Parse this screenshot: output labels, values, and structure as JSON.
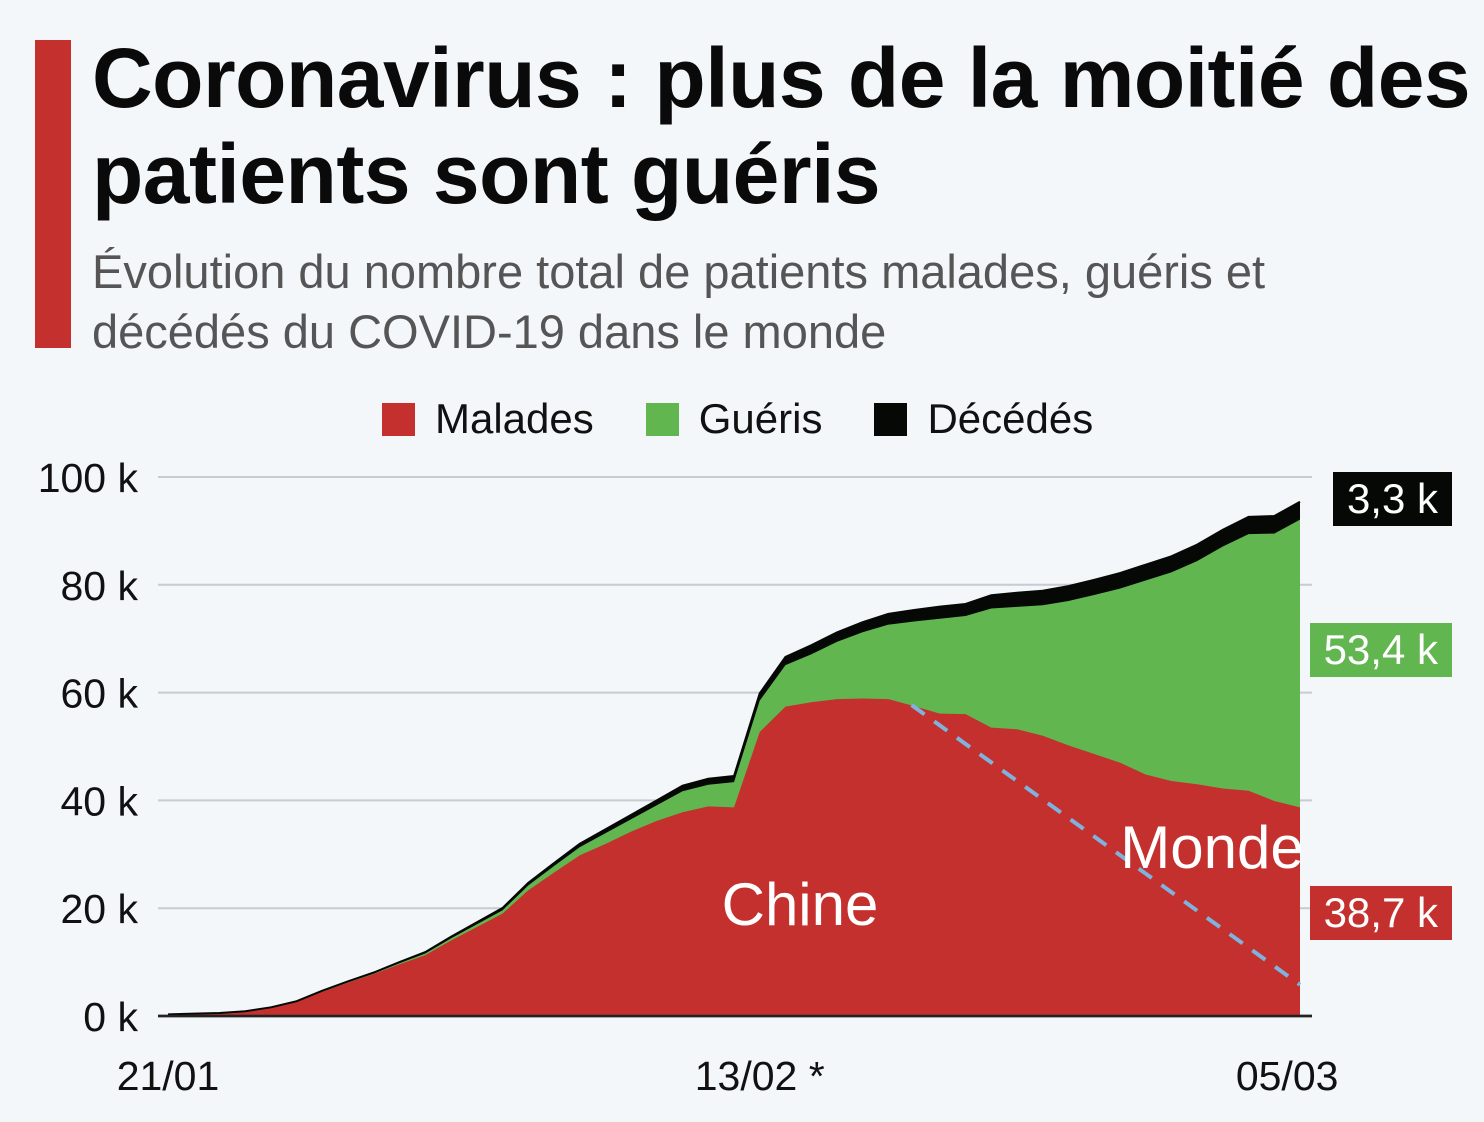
{
  "header": {
    "title": "Coronavirus : plus de la moitié des patients sont guéris",
    "subtitle": "Évolution du nombre total de patients malades, guéris et décédés du COVID-19 dans le monde"
  },
  "colors": {
    "malades": "#c4302e",
    "gueris": "#62b64f",
    "decedes": "#050805",
    "accent": "#c4302e",
    "dashed": "#7fb2dc"
  },
  "chart_data": {
    "type": "area",
    "stacked": true,
    "title": "Coronavirus : plus de la moitié des patients sont guéris",
    "xlabel": "",
    "ylabel": "",
    "x_days_from_start": [
      0,
      1,
      2,
      3,
      4,
      5,
      6,
      7,
      8,
      9,
      10,
      11,
      12,
      13,
      14,
      15,
      16,
      17,
      18,
      19,
      20,
      21,
      22,
      23,
      24,
      25,
      26,
      27,
      28,
      29,
      30,
      31,
      32,
      33,
      34,
      35,
      36,
      37,
      38,
      39,
      40,
      41,
      42,
      43,
      44
    ],
    "x_ticks": [
      {
        "day": 0,
        "label": "21/01"
      },
      {
        "day": 23,
        "label": "13/02 *"
      },
      {
        "day": 43.5,
        "label": "05/03"
      }
    ],
    "y_ticks": [
      {
        "value": 0,
        "label": "0 k"
      },
      {
        "value": 20,
        "label": "20 k"
      },
      {
        "value": 40,
        "label": "40 k"
      },
      {
        "value": 60,
        "label": "60 k"
      },
      {
        "value": 80,
        "label": "80 k"
      },
      {
        "value": 100,
        "label": "100 k"
      }
    ],
    "ylim": [
      0,
      100
    ],
    "grid": true,
    "legend": {
      "placement": "top-center",
      "entries": [
        "Malades",
        "Guéris",
        "Décédés"
      ]
    },
    "series": [
      {
        "name": "Malades",
        "unit": "k",
        "values": [
          0.3,
          0.4,
          0.5,
          0.8,
          1.5,
          2.6,
          4.5,
          6.2,
          7.8,
          9.6,
          11.3,
          14.0,
          16.5,
          19.0,
          23.3,
          26.6,
          29.8,
          31.9,
          34.2,
          36.2,
          37.8,
          38.9,
          38.7,
          52.7,
          57.4,
          58.2,
          58.8,
          58.9,
          58.8,
          57.5,
          56.1,
          56.0,
          53.5,
          53.2,
          52.0,
          50.2,
          48.6,
          47.0,
          44.8,
          43.6,
          43.0,
          42.2,
          41.8,
          39.9,
          38.7
        ]
      },
      {
        "name": "Guéris",
        "unit": "k",
        "values": [
          0,
          0.03,
          0.03,
          0.04,
          0.05,
          0.06,
          0.1,
          0.1,
          0.1,
          0.2,
          0.3,
          0.4,
          0.5,
          0.6,
          0.9,
          1.2,
          1.5,
          2.0,
          2.3,
          2.9,
          3.9,
          4.0,
          4.7,
          5.8,
          7.7,
          8.9,
          10.6,
          12.3,
          13.8,
          15.7,
          17.6,
          18.2,
          22.1,
          22.7,
          24.2,
          26.8,
          29.5,
          32.3,
          36.0,
          38.7,
          41.4,
          44.9,
          47.6,
          49.6,
          53.4
        ]
      },
      {
        "name": "Décédés",
        "unit": "k",
        "values": [
          0.01,
          0.02,
          0.03,
          0.04,
          0.06,
          0.08,
          0.1,
          0.13,
          0.17,
          0.21,
          0.26,
          0.3,
          0.36,
          0.43,
          0.49,
          0.56,
          0.64,
          0.72,
          0.81,
          0.91,
          1.02,
          1.11,
          1.12,
          1.37,
          1.52,
          1.67,
          1.77,
          1.87,
          2.01,
          2.12,
          2.25,
          2.25,
          2.46,
          2.62,
          2.7,
          2.76,
          2.81,
          2.87,
          2.94,
          2.99,
          3.05,
          3.12,
          3.2,
          3.26,
          3.3
        ]
      }
    ],
    "end_labels": {
      "decedes": "3,3 k",
      "gueris": "53,4 k",
      "malades": "38,7 k"
    },
    "annotations": [
      {
        "text": "Chine",
        "region": "malades area below dashed line"
      },
      {
        "text": "Monde",
        "region": "malades area above dashed line"
      }
    ],
    "divider_line": {
      "style": "dashed",
      "from": {
        "day": 28.9,
        "value": 57.7
      },
      "to": {
        "day": 44,
        "value": 5.8
      }
    }
  }
}
